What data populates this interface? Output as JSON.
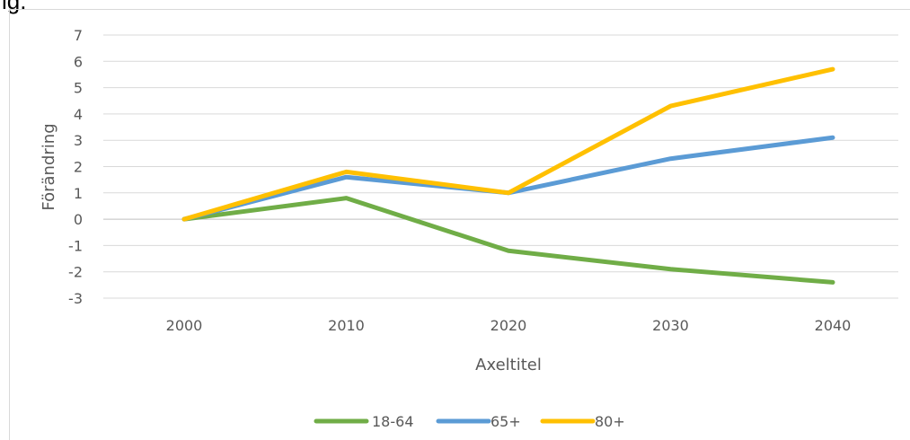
{
  "caption": "ig.",
  "chart_data": {
    "type": "line",
    "categories": [
      "2000",
      "2010",
      "2020",
      "2030",
      "2040"
    ],
    "series": [
      {
        "name": "18-64",
        "color": "#70ad47",
        "values": [
          0,
          0.8,
          -1.2,
          -1.9,
          -2.4
        ]
      },
      {
        "name": "65+",
        "color": "#5b9bd5",
        "values": [
          0,
          1.6,
          1.0,
          2.3,
          3.1
        ]
      },
      {
        "name": "80+",
        "color": "#ffc000",
        "values": [
          0,
          1.8,
          1.0,
          4.3,
          5.7
        ]
      }
    ],
    "title": "",
    "xlabel": "Axeltitel",
    "ylabel": "Förändring",
    "ylim": [
      -3,
      7
    ],
    "yticks": [
      -3,
      -2,
      -1,
      0,
      1,
      2,
      3,
      4,
      5,
      6,
      7
    ],
    "grid": true,
    "legend_position": "bottom"
  }
}
